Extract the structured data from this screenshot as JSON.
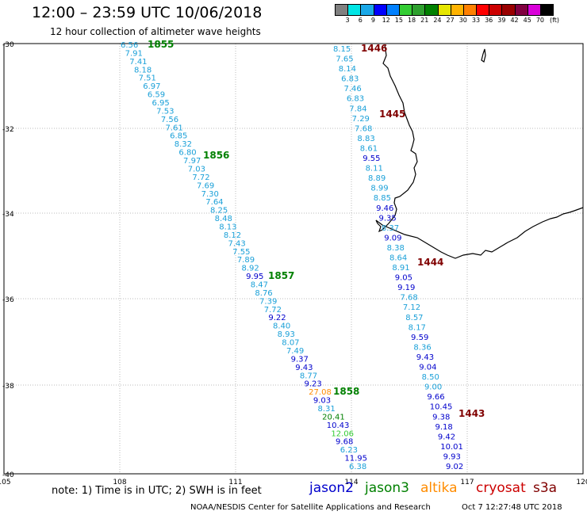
{
  "title": "12:00 – 23:59 UTC 10/06/2018",
  "subtitle": "12 hour collection of altimeter wave heights",
  "colorbar": {
    "unit": "(ft)",
    "labels": [
      "3",
      "6",
      "9",
      "12",
      "15",
      "18",
      "21",
      "24",
      "27",
      "30",
      "33",
      "36",
      "39",
      "42",
      "45",
      "70"
    ],
    "colors": [
      "#808080",
      "#00e5e5",
      "#19a8e8",
      "#0000ff",
      "#0080ff",
      "#33cc33",
      "#2ea02e",
      "#008000",
      "#e6e600",
      "#ffb300",
      "#ff8000",
      "#ff0000",
      "#cc0000",
      "#990000",
      "#800040",
      "#d900d9",
      "#000000"
    ]
  },
  "axes": {
    "lon_ticks": [
      "105",
      "108",
      "111",
      "114",
      "117",
      "120"
    ],
    "lat_ticks": [
      "-30",
      "-32",
      "-34",
      "-36",
      "-38",
      "-40"
    ]
  },
  "colors": {
    "jason2": "#0000cc",
    "jason3": "#008000",
    "altika": "#ff8c00",
    "cryosat": "#cc0000",
    "s3a": "#800000",
    "light_blue": "#1aa0d8",
    "light_green": "#33cc33",
    "grid": "#bbbbbb",
    "coast": "#000000"
  },
  "track_west": [
    {
      "v": "6.56",
      "c": "light_blue"
    },
    {
      "v": "7.91",
      "c": "light_blue"
    },
    {
      "v": "7.41",
      "c": "light_blue"
    },
    {
      "v": "8.18",
      "c": "light_blue"
    },
    {
      "v": "7.51",
      "c": "light_blue"
    },
    {
      "v": "6.97",
      "c": "light_blue"
    },
    {
      "v": "6.59",
      "c": "light_blue"
    },
    {
      "v": "6.95",
      "c": "light_blue"
    },
    {
      "v": "7.53",
      "c": "light_blue"
    },
    {
      "v": "7.56",
      "c": "light_blue"
    },
    {
      "v": "7.61",
      "c": "light_blue"
    },
    {
      "v": "6.85",
      "c": "light_blue"
    },
    {
      "v": "8.32",
      "c": "light_blue"
    },
    {
      "v": "6.80",
      "c": "light_blue"
    },
    {
      "v": "7.97",
      "c": "light_blue"
    },
    {
      "v": "7.03",
      "c": "light_blue"
    },
    {
      "v": "7.72",
      "c": "light_blue"
    },
    {
      "v": "7.69",
      "c": "light_blue"
    },
    {
      "v": "7.30",
      "c": "light_blue"
    },
    {
      "v": "7.64",
      "c": "light_blue"
    },
    {
      "v": "8.25",
      "c": "light_blue"
    },
    {
      "v": "8.48",
      "c": "light_blue"
    },
    {
      "v": "8.13",
      "c": "light_blue"
    },
    {
      "v": "8.12",
      "c": "light_blue"
    },
    {
      "v": "7.43",
      "c": "light_blue"
    },
    {
      "v": "7.55",
      "c": "light_blue"
    },
    {
      "v": "7.89",
      "c": "light_blue"
    },
    {
      "v": "8.92",
      "c": "light_blue"
    },
    {
      "v": "9.95",
      "c": "jason2"
    },
    {
      "v": "8.47",
      "c": "light_blue"
    },
    {
      "v": "8.76",
      "c": "light_blue"
    },
    {
      "v": "7.39",
      "c": "light_blue"
    },
    {
      "v": "7.72",
      "c": "light_blue"
    },
    {
      "v": "9.22",
      "c": "jason2"
    },
    {
      "v": "8.40",
      "c": "light_blue"
    },
    {
      "v": "8.93",
      "c": "light_blue"
    },
    {
      "v": "8.07",
      "c": "light_blue"
    },
    {
      "v": "7.49",
      "c": "light_blue"
    },
    {
      "v": "9.37",
      "c": "jason2"
    },
    {
      "v": "9.43",
      "c": "jason2"
    },
    {
      "v": "8.77",
      "c": "light_blue"
    },
    {
      "v": "9.23",
      "c": "jason2"
    },
    {
      "v": "27.08",
      "c": "altika"
    },
    {
      "v": "9.03",
      "c": "jason2"
    },
    {
      "v": "8.31",
      "c": "light_blue"
    },
    {
      "v": "20.41",
      "c": "jason3"
    },
    {
      "v": "10.43",
      "c": "jason2"
    },
    {
      "v": "12.06",
      "c": "light_green"
    },
    {
      "v": "9.68",
      "c": "jason2"
    },
    {
      "v": "6.23",
      "c": "light_blue"
    },
    {
      "v": "11.95",
      "c": "jason2"
    },
    {
      "v": "6.38",
      "c": "light_blue"
    }
  ],
  "track_east": [
    {
      "v": "8.15",
      "c": "light_blue"
    },
    {
      "v": "7.65",
      "c": "light_blue"
    },
    {
      "v": "8.14",
      "c": "light_blue"
    },
    {
      "v": "6.83",
      "c": "light_blue"
    },
    {
      "v": "7.46",
      "c": "light_blue"
    },
    {
      "v": "6.83",
      "c": "light_blue"
    },
    {
      "v": "7.84",
      "c": "light_blue"
    },
    {
      "v": "7.29",
      "c": "light_blue"
    },
    {
      "v": "7.68",
      "c": "light_blue"
    },
    {
      "v": "8.83",
      "c": "light_blue"
    },
    {
      "v": "8.61",
      "c": "light_blue"
    },
    {
      "v": "9.55",
      "c": "jason2"
    },
    {
      "v": "8.11",
      "c": "light_blue"
    },
    {
      "v": "8.89",
      "c": "light_blue"
    },
    {
      "v": "8.99",
      "c": "light_blue"
    },
    {
      "v": "8.85",
      "c": "light_blue"
    },
    {
      "v": "9.46",
      "c": "jason2"
    },
    {
      "v": "9.35",
      "c": "jason2"
    },
    {
      "v": "8.37",
      "c": "light_blue"
    },
    {
      "v": "9.09",
      "c": "jason2"
    },
    {
      "v": "8.38",
      "c": "light_blue"
    },
    {
      "v": "8.64",
      "c": "light_blue"
    },
    {
      "v": "8.91",
      "c": "light_blue"
    },
    {
      "v": "9.05",
      "c": "jason2"
    },
    {
      "v": "9.19",
      "c": "jason2"
    },
    {
      "v": "7.68",
      "c": "light_blue"
    },
    {
      "v": "7.12",
      "c": "light_blue"
    },
    {
      "v": "8.57",
      "c": "light_blue"
    },
    {
      "v": "8.17",
      "c": "light_blue"
    },
    {
      "v": "9.59",
      "c": "jason2"
    },
    {
      "v": "8.36",
      "c": "light_blue"
    },
    {
      "v": "9.43",
      "c": "jason2"
    },
    {
      "v": "9.04",
      "c": "jason2"
    },
    {
      "v": "8.50",
      "c": "light_blue"
    },
    {
      "v": "9.00",
      "c": "light_blue"
    },
    {
      "v": "9.66",
      "c": "jason2"
    },
    {
      "v": "10.45",
      "c": "jason2"
    },
    {
      "v": "9.38",
      "c": "jason2"
    },
    {
      "v": "9.18",
      "c": "jason2"
    },
    {
      "v": "9.42",
      "c": "jason2"
    },
    {
      "v": "10.01",
      "c": "jason2"
    },
    {
      "v": "9.93",
      "c": "jason2"
    },
    {
      "v": "9.02",
      "c": "jason2"
    }
  ],
  "time_labels": [
    {
      "t": "1855",
      "c": "jason3"
    },
    {
      "t": "1856",
      "c": "jason3"
    },
    {
      "t": "1857",
      "c": "jason3"
    },
    {
      "t": "1858",
      "c": "jason3"
    },
    {
      "t": "1446",
      "c": "s3a"
    },
    {
      "t": "1445",
      "c": "s3a"
    },
    {
      "t": "1444",
      "c": "s3a"
    },
    {
      "t": "1443",
      "c": "s3a"
    }
  ],
  "note": "note: 1) Time is in UTC; 2) SWH is in feet",
  "legend": [
    {
      "label": "jason2",
      "c": "jason2"
    },
    {
      "label": "jason3",
      "c": "jason3"
    },
    {
      "label": "altika",
      "c": "altika"
    },
    {
      "label": "cryosat",
      "c": "cryosat"
    },
    {
      "label": "s3a",
      "c": "s3a"
    }
  ],
  "footer": "NOAA/NESDIS Center for Satellite Applications and Research",
  "footer_timestamp": "Oct  7 12:27:48 UTC 2018"
}
